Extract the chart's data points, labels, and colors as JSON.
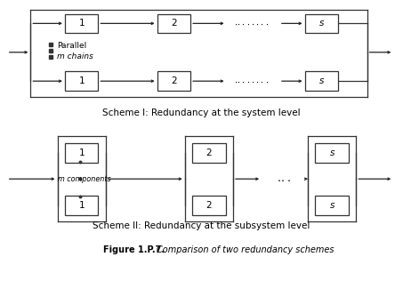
{
  "fig_width": 4.53,
  "fig_height": 3.16,
  "dpi": 100,
  "background_color": "#ffffff",
  "scheme1_label": "Scheme I: Redundancy at the system level",
  "scheme2_label": "Scheme II: Redundancy at the subsystem level",
  "figure_label_bold": "Figure 1.P.7.",
  "figure_label_normal": "Comparison of two redundancy schemes",
  "parallel_label": "Parallel",
  "m_chains_label": "m chains",
  "m_components_label": "m components",
  "dots_s1": "·······",
  "dots_s2": "· · ·"
}
